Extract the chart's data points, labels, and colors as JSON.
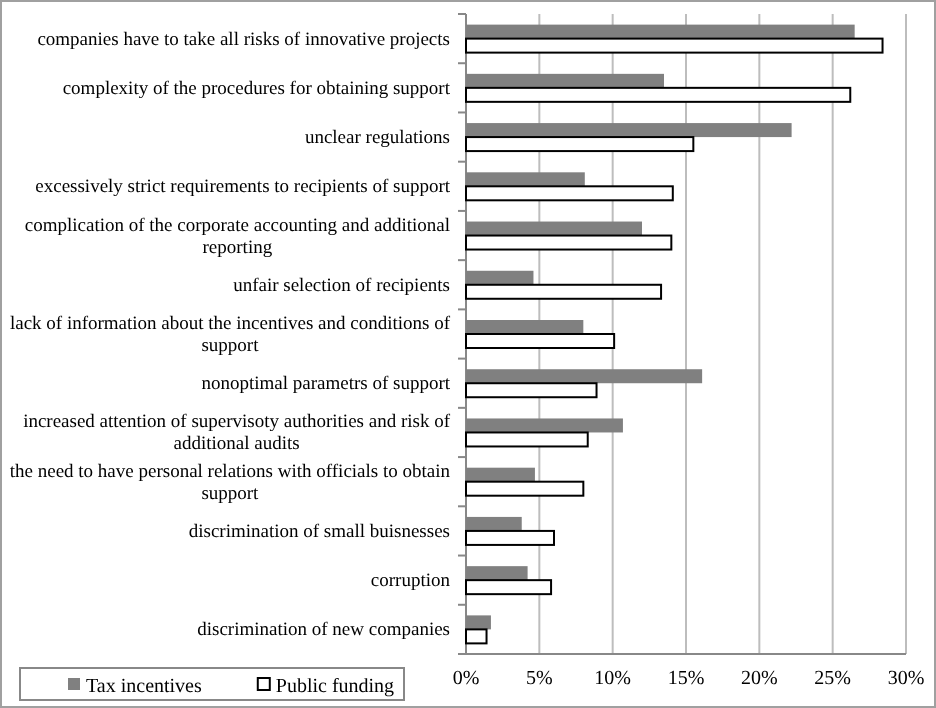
{
  "chart_data": {
    "type": "bar",
    "orientation": "horizontal",
    "categories": [
      "companies have to take all risks of innovative projects",
      "complexity of the procedures for obtaining support",
      "unclear regulations",
      "excessively strict requirements to recipients of support",
      "complication of the corporate accounting and additional reporting",
      "unfair selection of recipients",
      "lack of information about the incentives and conditions of support",
      "nonoptimal parametrs of support",
      "increased attention of supervisoty authorities and risk of additional audits",
      "the need to have personal relations with officials to obtain support",
      "discrimination of small buisnesses",
      "corruption",
      "discrimination of new companies"
    ],
    "series": [
      {
        "name": "Tax incentives",
        "color": "#808080",
        "values": [
          26.5,
          13.5,
          22.2,
          8.1,
          12.0,
          4.6,
          8.0,
          16.1,
          10.7,
          4.7,
          3.8,
          4.2,
          1.7
        ]
      },
      {
        "name": "Public funding",
        "color": "#ffffff",
        "values": [
          28.4,
          26.2,
          15.5,
          14.1,
          14.0,
          13.3,
          10.1,
          8.9,
          8.3,
          8.0,
          6.0,
          5.8,
          1.4
        ]
      }
    ],
    "xlim": [
      0,
      30
    ],
    "xticks": [
      {
        "value": 0,
        "label": "0%"
      },
      {
        "value": 5,
        "label": "5%"
      },
      {
        "value": 10,
        "label": "10%"
      },
      {
        "value": 15,
        "label": "15%"
      },
      {
        "value": 20,
        "label": "20%"
      },
      {
        "value": 25,
        "label": "25%"
      },
      {
        "value": 30,
        "label": "30%"
      }
    ],
    "grid": "x",
    "legend": "bottom left"
  }
}
